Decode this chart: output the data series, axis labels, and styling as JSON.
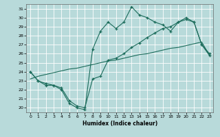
{
  "xlabel": "Humidex (Indice chaleur)",
  "bg_color": "#b8dada",
  "line_color": "#1a6b5a",
  "xlim": [
    -0.5,
    23.5
  ],
  "ylim": [
    19.5,
    31.5
  ],
  "xticks": [
    0,
    1,
    2,
    3,
    4,
    5,
    6,
    7,
    8,
    9,
    10,
    11,
    12,
    13,
    14,
    15,
    16,
    17,
    18,
    19,
    20,
    21,
    22,
    23
  ],
  "yticks": [
    20,
    21,
    22,
    23,
    24,
    25,
    26,
    27,
    28,
    29,
    30,
    31
  ],
  "x": [
    0,
    1,
    2,
    3,
    4,
    5,
    6,
    7,
    8,
    9,
    10,
    11,
    12,
    13,
    14,
    15,
    16,
    17,
    18,
    19,
    20,
    21,
    22,
    23
  ],
  "y_jagged": [
    24.0,
    23.0,
    22.5,
    22.5,
    22.0,
    20.5,
    20.0,
    19.8,
    26.5,
    28.5,
    29.5,
    28.8,
    29.5,
    31.2,
    30.3,
    30.0,
    29.5,
    29.2,
    28.5,
    29.5,
    30.0,
    29.5,
    27.0,
    26.0
  ],
  "y_mid": [
    24.0,
    23.0,
    22.7,
    22.5,
    22.2,
    20.8,
    20.2,
    20.0,
    23.2,
    23.5,
    25.3,
    25.5,
    26.0,
    26.7,
    27.2,
    27.8,
    28.3,
    28.8,
    29.0,
    29.5,
    29.8,
    29.5,
    27.0,
    25.8
  ],
  "y_linear": [
    23.2,
    23.5,
    23.7,
    23.9,
    24.1,
    24.3,
    24.4,
    24.6,
    24.8,
    25.0,
    25.2,
    25.3,
    25.5,
    25.7,
    25.9,
    26.0,
    26.2,
    26.4,
    26.6,
    26.7,
    26.9,
    27.1,
    27.3,
    25.8
  ]
}
